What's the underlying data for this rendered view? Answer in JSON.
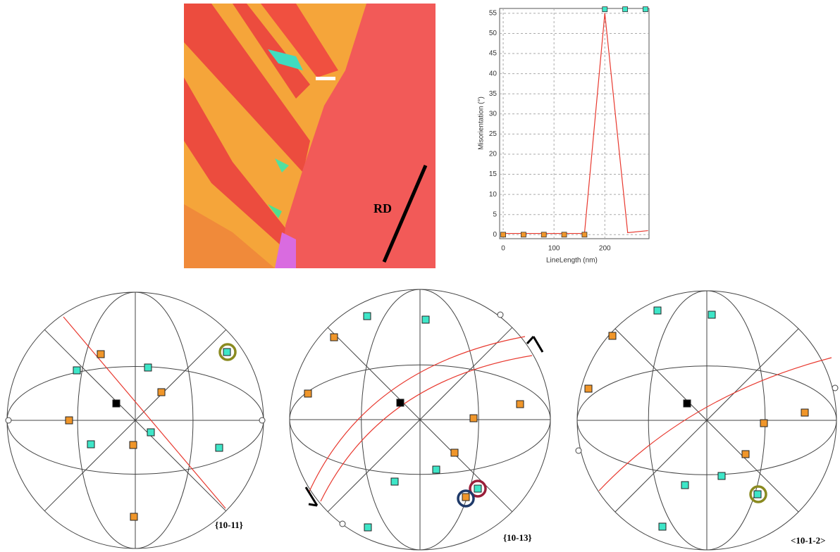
{
  "map": {
    "label": "RD"
  },
  "chart_data": {
    "type": "line",
    "x_label": "LineLength (nm)",
    "y_label": "Misorientation (°)",
    "xlim": [
      -7,
      287
    ],
    "ylim": [
      -1,
      56.2
    ],
    "xticks": [
      0,
      100,
      200
    ],
    "yticks": [
      0,
      5,
      10,
      15,
      20,
      25,
      30,
      35,
      40,
      45,
      50,
      55
    ],
    "grid": true,
    "series": [
      {
        "color": "#e8392f",
        "marker": "none",
        "x": [
          0,
          160,
          200,
          245,
          285
        ],
        "values": [
          0.3,
          0.3,
          55,
          0.5,
          1
        ]
      },
      {
        "color": "#f0962a",
        "marker": "square",
        "x": [
          0,
          40,
          80,
          120,
          160
        ],
        "values": [
          0,
          0,
          0,
          0,
          0
        ]
      },
      {
        "color": "#3ee6c8",
        "marker": "square",
        "x": [
          200,
          240,
          280
        ],
        "values": [
          56,
          56,
          56
        ]
      }
    ]
  },
  "pole_figures": [
    {
      "label": "{10-11}"
    },
    {
      "label": "{10-13}"
    },
    {
      "label": "<10-1-2>"
    }
  ]
}
